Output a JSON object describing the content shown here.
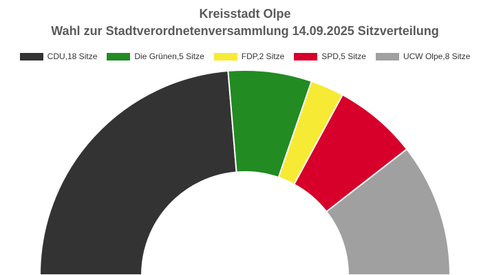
{
  "title": "Kreisstadt Olpe",
  "subtitle": "Wahl zur Stadtverordnetenversammlung 14.09.2025 Sitzverteilung",
  "chart_data": {
    "type": "pie",
    "variant": "half-donut",
    "total_seats": 38,
    "legend_position": "top",
    "series": [
      {
        "label": "CDU,18 Sitze",
        "value": 18,
        "color": "#333333"
      },
      {
        "label": "Die Grünen,5 Sitze",
        "value": 5,
        "color": "#228b22"
      },
      {
        "label": "FDP,2 Sitze",
        "value": 2,
        "color": "#f7ea34"
      },
      {
        "label": "SPD,5 Sitze",
        "value": 5,
        "color": "#d6002b"
      },
      {
        "label": "UCW Olpe,8 Sitze",
        "value": 8,
        "color": "#a0a0a0"
      }
    ]
  }
}
